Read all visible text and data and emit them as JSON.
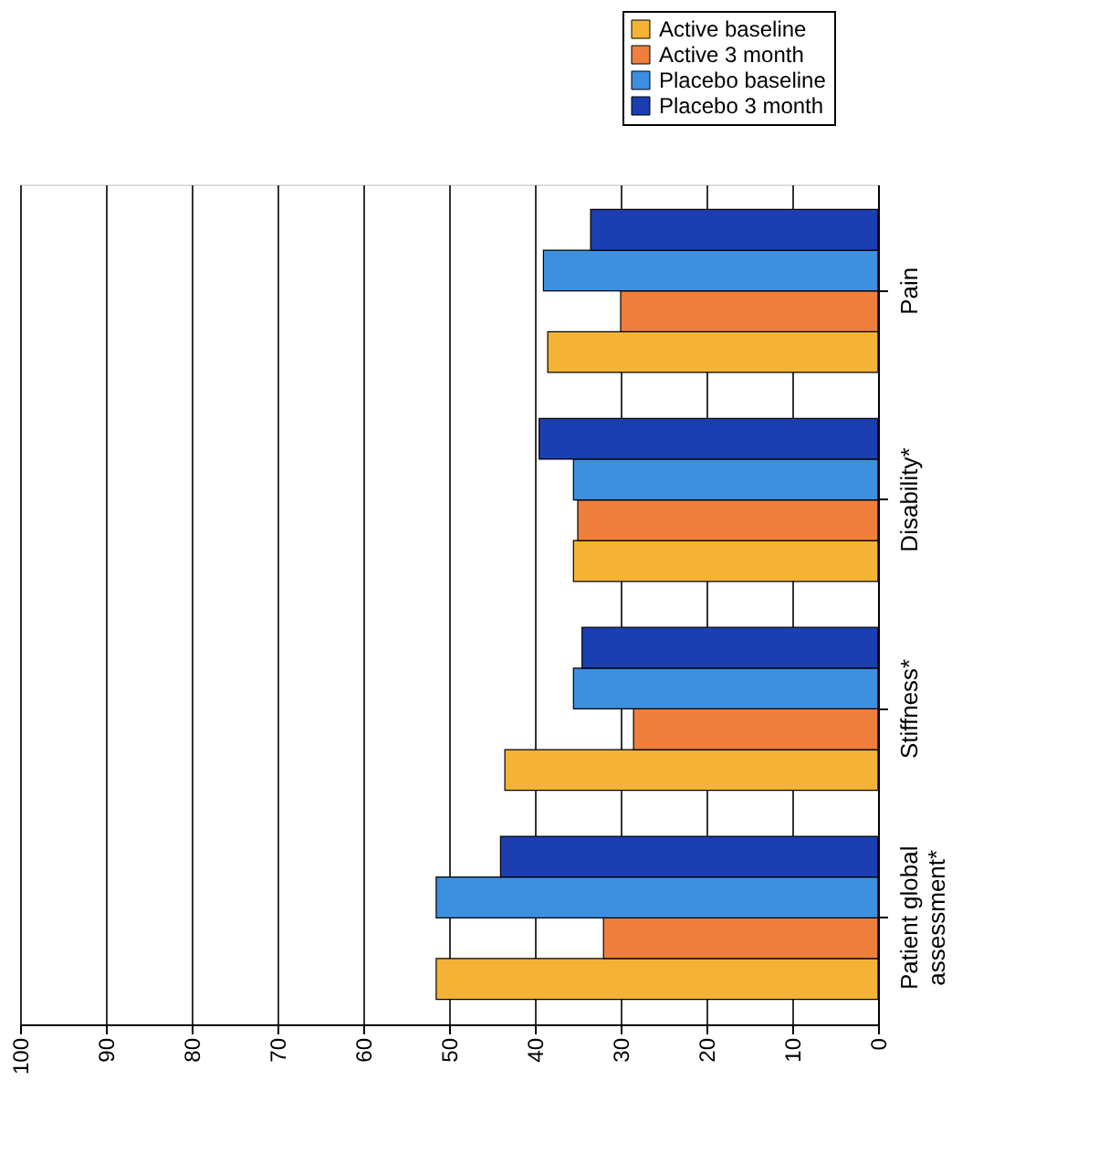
{
  "chart_data": {
    "type": "bar",
    "orientation": "horizontal",
    "categories": [
      "Pain",
      "Disability*",
      "Stiffness*",
      "Patient global assessment*"
    ],
    "series": [
      {
        "name": "Active baseline",
        "color": "#f5b335",
        "values": [
          38.5,
          35.5,
          43.5,
          51.5
        ]
      },
      {
        "name": "Active 3 month",
        "color": "#ee7f3c",
        "values": [
          30,
          35,
          28.5,
          32
        ]
      },
      {
        "name": "Placebo baseline",
        "color": "#3d8fe0",
        "values": [
          39,
          35.5,
          35.5,
          51.5
        ]
      },
      {
        "name": "Placebo 3 month",
        "color": "#1b3fb0",
        "values": [
          33.5,
          39.5,
          34.5,
          44
        ]
      }
    ],
    "xlim": [
      100,
      0
    ],
    "xticks": [
      0,
      10,
      20,
      30,
      40,
      50,
      60,
      70,
      80,
      90,
      100
    ],
    "grid": "x",
    "legend": "top right"
  }
}
